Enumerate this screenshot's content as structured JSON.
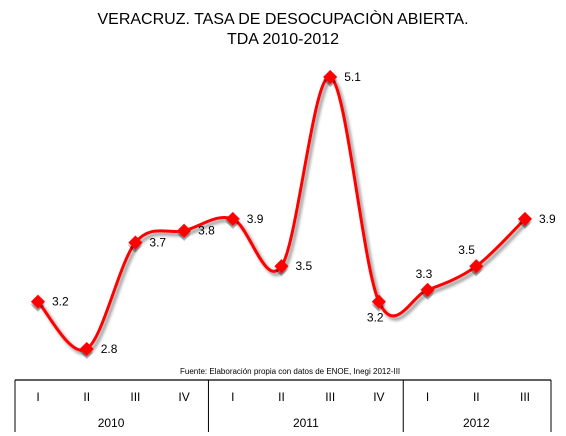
{
  "chart_data": {
    "type": "line",
    "title": "VERACRUZ.  TASA DE DESOCUPACIÒN ABIERTA.",
    "subtitle": "TDA 2010-2012",
    "categories": [
      "I",
      "II",
      "III",
      "IV",
      "I",
      "II",
      "III",
      "IV",
      "I",
      "II",
      "III"
    ],
    "groups": [
      {
        "label": "2010",
        "count": 4
      },
      {
        "label": "2011",
        "count": 4
      },
      {
        "label": "2012",
        "count": 3
      }
    ],
    "series": [
      {
        "values": [
          3.2,
          2.8,
          3.7,
          3.8,
          3.9,
          3.5,
          5.1,
          3.2,
          3.3,
          3.5,
          3.9
        ],
        "labels": [
          "3.2",
          "2.8",
          "3.7",
          "3.8",
          "3.9",
          "3.5",
          "5.1",
          "3.2",
          "3.3",
          "3.5",
          "3.9"
        ],
        "color": "#ff0000"
      }
    ],
    "smooth": true,
    "grid": false,
    "legend": "none",
    "source": "Fuente: Elaboración propia con datos de ENOE, Inegi 2012-III"
  }
}
